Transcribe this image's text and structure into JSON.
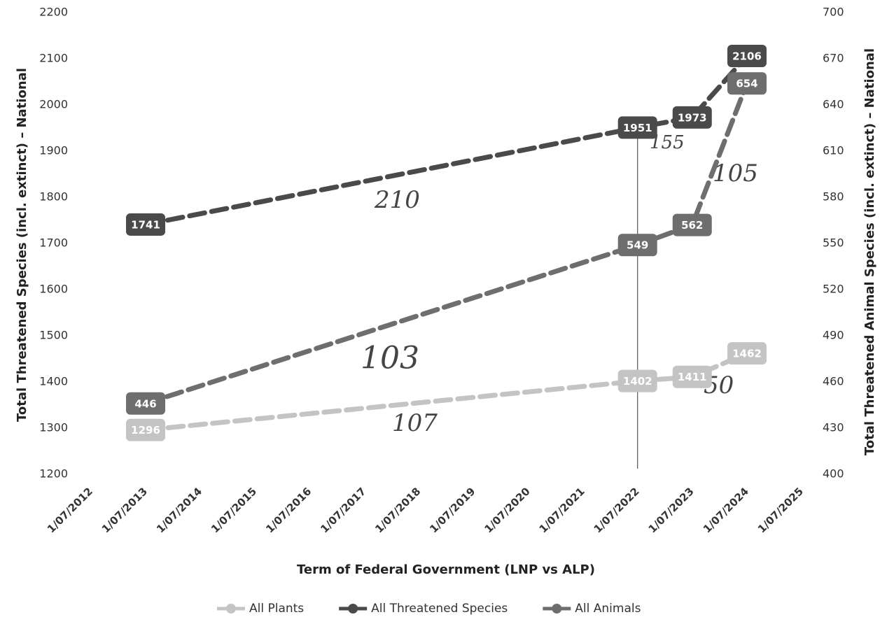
{
  "chart_data": {
    "type": "line",
    "x": [
      "1/07/2013",
      "1/07/2022",
      "1/07/2023",
      "1/07/2024"
    ],
    "series": [
      {
        "name": "All Plants",
        "color": "#c4c4c4",
        "values": [
          1296,
          1402,
          1411,
          1462
        ]
      },
      {
        "name": "All Threatened Species",
        "color": "#4a4a4a",
        "values": [
          1741,
          1951,
          1973,
          2106
        ]
      },
      {
        "name": "All Animals",
        "color": "#6e6e6e",
        "axis": "y2",
        "values": [
          446,
          549,
          562,
          654
        ]
      }
    ],
    "xlim": [
      "1/07/2012",
      "1/07/2025"
    ],
    "xticks": [
      "1/07/2012",
      "1/07/2013",
      "1/07/2014",
      "1/07/2015",
      "1/07/2016",
      "1/07/2017",
      "1/07/2018",
      "1/07/2019",
      "1/07/2020",
      "1/07/2021",
      "1/07/2022",
      "1/07/2023",
      "1/07/2024",
      "1/07/2025"
    ],
    "ylim": [
      1200,
      2200
    ],
    "yticks": [
      1200,
      1300,
      1400,
      1500,
      1600,
      1700,
      1800,
      1900,
      2000,
      2100,
      2200
    ],
    "y2lim": [
      400,
      700
    ],
    "y2ticks": [
      400,
      430,
      460,
      490,
      520,
      550,
      580,
      610,
      640,
      670,
      700
    ],
    "xlabel": "Term of Federal Government (LNP vs ALP)",
    "ylabel": "Total Threatened Species (incl. extinct) – National",
    "y2label": "Total Threatened Animal Species (incl. extinct) – National",
    "annotations": [
      "210",
      "155",
      "105",
      "103",
      "107",
      "50"
    ],
    "legend": "bottom",
    "grid": false
  }
}
